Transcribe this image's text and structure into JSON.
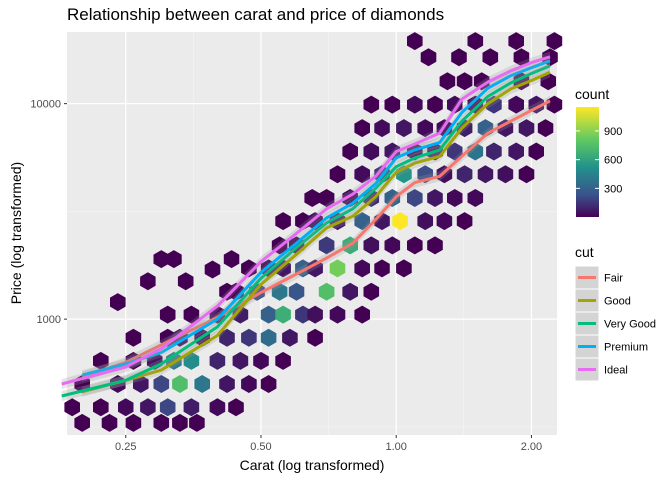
{
  "chart_data": {
    "type": "hexbin-scatter-with-smooth-lines",
    "title": "Relationship between carat and price of diamonds",
    "xlabel": "Carat (log transformed)",
    "ylabel": "Price (log transformed)",
    "x_scale": "log10",
    "y_scale": "log10",
    "xlim": [
      0.185,
      2.28
    ],
    "ylim": [
      290,
      21500
    ],
    "x_ticks": [
      {
        "value": 0.25,
        "label": "0.25"
      },
      {
        "value": 0.5,
        "label": "0.50"
      },
      {
        "value": 1.0,
        "label": "1.00"
      },
      {
        "value": 2.0,
        "label": "2.00"
      }
    ],
    "y_ticks": [
      {
        "value": 1000,
        "label": "1000"
      },
      {
        "value": 10000,
        "label": "10000"
      }
    ],
    "grid": true,
    "background": "#ebebeb",
    "colorbar": {
      "title": "count",
      "ticks": [
        {
          "value": 300,
          "label": "300"
        },
        {
          "value": 600,
          "label": "600"
        },
        {
          "value": 900,
          "label": "900"
        }
      ],
      "range": [
        1,
        1150
      ],
      "colormap": "viridis"
    },
    "series": [
      {
        "name": "Fair",
        "color": "#f8766d",
        "x": [
          0.2,
          0.25,
          0.3,
          0.4,
          0.5,
          0.6,
          0.7,
          0.8,
          0.9,
          1.0,
          1.1,
          1.25,
          1.4,
          1.6,
          1.8,
          2.0,
          2.2
        ],
        "y": [
          540,
          630,
          760,
          1020,
          1330,
          1620,
          1920,
          2250,
          2900,
          3700,
          4300,
          4600,
          5700,
          7300,
          8300,
          9300,
          10300
        ]
      },
      {
        "name": "Good",
        "color": "#a3a500",
        "x": [
          0.2,
          0.25,
          0.3,
          0.4,
          0.5,
          0.6,
          0.7,
          0.8,
          0.9,
          1.0,
          1.1,
          1.25,
          1.4,
          1.6,
          1.8,
          2.0,
          2.2
        ],
        "y": [
          460,
          520,
          580,
          840,
          1450,
          2000,
          2650,
          3000,
          3700,
          4800,
          5300,
          5700,
          7700,
          10000,
          11700,
          12800,
          14000
        ]
      },
      {
        "name": "Very Good",
        "color": "#00bf7d",
        "x": [
          0.18,
          0.25,
          0.3,
          0.4,
          0.5,
          0.6,
          0.7,
          0.8,
          0.9,
          1.0,
          1.1,
          1.25,
          1.4,
          1.6,
          1.8,
          2.0,
          2.2
        ],
        "y": [
          440,
          520,
          620,
          920,
          1550,
          2150,
          2800,
          3250,
          4050,
          5100,
          5600,
          6100,
          8300,
          10800,
          12500,
          13800,
          15000
        ]
      },
      {
        "name": "Premium",
        "color": "#00b0f6",
        "x": [
          0.2,
          0.25,
          0.3,
          0.4,
          0.5,
          0.6,
          0.7,
          0.8,
          0.9,
          1.0,
          1.1,
          1.25,
          1.4,
          1.6,
          1.8,
          2.0,
          2.2
        ],
        "y": [
          550,
          620,
          700,
          1000,
          1650,
          2250,
          2950,
          3450,
          4250,
          5600,
          6100,
          6600,
          9100,
          11800,
          13500,
          14700,
          15800
        ]
      },
      {
        "name": "Ideal",
        "color": "#e76bf3",
        "x": [
          0.18,
          0.25,
          0.3,
          0.4,
          0.5,
          0.6,
          0.7,
          0.8,
          0.9,
          1.0,
          1.1,
          1.25,
          1.4,
          1.6,
          1.8,
          2.0,
          2.2
        ],
        "y": [
          500,
          600,
          730,
          1150,
          1850,
          2500,
          3250,
          3800,
          4600,
          6000,
          6500,
          7300,
          10500,
          12600,
          14200,
          15500,
          16500
        ]
      }
    ],
    "hexbins": [
      [
        1.3,
        12700,
        1
      ],
      [
        1.42,
        12700,
        1
      ],
      [
        1.55,
        12700,
        1
      ],
      [
        1.9,
        12700,
        1
      ],
      [
        2.18,
        12700,
        1
      ],
      [
        1.18,
        16400,
        1
      ],
      [
        1.38,
        16400,
        1
      ],
      [
        1.62,
        16400,
        1
      ],
      [
        1.9,
        16400,
        1
      ],
      [
        2.2,
        16400,
        1
      ],
      [
        1.1,
        19500,
        1
      ],
      [
        1.5,
        19500,
        1
      ],
      [
        1.85,
        19500,
        1
      ],
      [
        2.25,
        19500,
        1
      ],
      [
        0.88,
        9900,
        1
      ],
      [
        0.98,
        9900,
        1
      ],
      [
        1.1,
        9900,
        20
      ],
      [
        1.22,
        9900,
        1
      ],
      [
        1.35,
        9900,
        30
      ],
      [
        1.5,
        9900,
        1
      ],
      [
        1.65,
        9900,
        150
      ],
      [
        1.85,
        9900,
        20
      ],
      [
        2.05,
        9900,
        60
      ],
      [
        2.25,
        9900,
        1
      ],
      [
        0.84,
        7700,
        1
      ],
      [
        0.93,
        7700,
        30
      ],
      [
        1.04,
        7700,
        60
      ],
      [
        1.16,
        7700,
        20
      ],
      [
        1.28,
        7700,
        20
      ],
      [
        1.42,
        7700,
        80
      ],
      [
        1.58,
        7700,
        300
      ],
      [
        1.75,
        7700,
        60
      ],
      [
        1.95,
        7700,
        60
      ],
      [
        2.15,
        7700,
        1
      ],
      [
        0.79,
        6000,
        1
      ],
      [
        0.88,
        6000,
        30
      ],
      [
        0.98,
        6000,
        60
      ],
      [
        1.1,
        6000,
        40
      ],
      [
        1.22,
        6000,
        60
      ],
      [
        1.35,
        6000,
        150
      ],
      [
        1.5,
        6000,
        380
      ],
      [
        1.65,
        6000,
        100
      ],
      [
        1.85,
        6000,
        60
      ],
      [
        2.05,
        6000,
        1
      ],
      [
        0.74,
        4700,
        1
      ],
      [
        0.84,
        4700,
        30
      ],
      [
        0.93,
        4700,
        120
      ],
      [
        1.04,
        4700,
        540
      ],
      [
        1.16,
        4700,
        220
      ],
      [
        1.28,
        4700,
        40
      ],
      [
        1.42,
        4700,
        100
      ],
      [
        1.58,
        4700,
        60
      ],
      [
        1.75,
        4700,
        40
      ],
      [
        1.95,
        4700,
        1
      ],
      [
        0.65,
        3650,
        1
      ],
      [
        0.7,
        3650,
        1
      ],
      [
        0.79,
        3650,
        20
      ],
      [
        0.88,
        3650,
        120
      ],
      [
        0.98,
        3650,
        300
      ],
      [
        1.1,
        3650,
        200
      ],
      [
        1.22,
        3650,
        60
      ],
      [
        1.35,
        3650,
        20
      ],
      [
        1.5,
        3650,
        20
      ],
      [
        0.56,
        2850,
        1
      ],
      [
        0.62,
        2850,
        1
      ],
      [
        0.66,
        2850,
        20
      ],
      [
        0.74,
        2850,
        60
      ],
      [
        0.84,
        2850,
        300
      ],
      [
        0.93,
        2850,
        60
      ],
      [
        1.02,
        2850,
        1150
      ],
      [
        1.16,
        2850,
        40
      ],
      [
        1.28,
        2850,
        20
      ],
      [
        1.42,
        2850,
        1
      ],
      [
        0.55,
        2200,
        1
      ],
      [
        0.6,
        2200,
        20
      ],
      [
        0.7,
        2200,
        160
      ],
      [
        0.79,
        2200,
        650
      ],
      [
        0.88,
        2200,
        40
      ],
      [
        0.98,
        2200,
        20
      ],
      [
        1.1,
        2200,
        1
      ],
      [
        1.22,
        2200,
        1
      ],
      [
        0.47,
        1720,
        1
      ],
      [
        0.52,
        1720,
        20
      ],
      [
        0.56,
        1720,
        60
      ],
      [
        0.62,
        1720,
        300
      ],
      [
        0.66,
        1720,
        60
      ],
      [
        0.74,
        1720,
        850
      ],
      [
        0.84,
        1720,
        20
      ],
      [
        0.93,
        1720,
        1
      ],
      [
        1.04,
        1720,
        1
      ],
      [
        0.42,
        1340,
        1
      ],
      [
        0.44,
        1340,
        1
      ],
      [
        0.49,
        1340,
        200
      ],
      [
        0.55,
        1340,
        400
      ],
      [
        0.6,
        1340,
        250
      ],
      [
        0.7,
        1340,
        750
      ],
      [
        0.79,
        1340,
        60
      ],
      [
        0.88,
        1340,
        1
      ],
      [
        0.31,
        1050,
        1
      ],
      [
        0.35,
        1050,
        1
      ],
      [
        0.4,
        1050,
        20
      ],
      [
        0.45,
        1050,
        80
      ],
      [
        0.52,
        1050,
        300
      ],
      [
        0.56,
        1050,
        660
      ],
      [
        0.62,
        1050,
        150
      ],
      [
        0.66,
        1050,
        40
      ],
      [
        0.74,
        1050,
        20
      ],
      [
        0.84,
        1050,
        1
      ],
      [
        0.26,
        820,
        1
      ],
      [
        0.31,
        820,
        1
      ],
      [
        0.33,
        820,
        60
      ],
      [
        0.37,
        820,
        40
      ],
      [
        0.42,
        820,
        100
      ],
      [
        0.47,
        820,
        150
      ],
      [
        0.52,
        820,
        350
      ],
      [
        0.58,
        820,
        60
      ],
      [
        0.66,
        820,
        1
      ],
      [
        0.22,
        640,
        1
      ],
      [
        0.26,
        640,
        20
      ],
      [
        0.29,
        640,
        60
      ],
      [
        0.32,
        640,
        400
      ],
      [
        0.35,
        640,
        500
      ],
      [
        0.4,
        640,
        100
      ],
      [
        0.45,
        640,
        60
      ],
      [
        0.5,
        640,
        20
      ],
      [
        0.56,
        640,
        1
      ],
      [
        0.2,
        500,
        1
      ],
      [
        0.24,
        500,
        20
      ],
      [
        0.27,
        500,
        60
      ],
      [
        0.3,
        500,
        200
      ],
      [
        0.33,
        500,
        750
      ],
      [
        0.37,
        500,
        400
      ],
      [
        0.42,
        500,
        60
      ],
      [
        0.47,
        500,
        20
      ],
      [
        0.52,
        500,
        1
      ],
      [
        0.19,
        390,
        1
      ],
      [
        0.22,
        390,
        1
      ],
      [
        0.25,
        390,
        20
      ],
      [
        0.28,
        390,
        60
      ],
      [
        0.31,
        390,
        200
      ],
      [
        0.35,
        390,
        80
      ],
      [
        0.4,
        390,
        20
      ],
      [
        0.44,
        390,
        1
      ],
      [
        0.2,
        330,
        1
      ],
      [
        0.23,
        330,
        1
      ],
      [
        0.26,
        330,
        1
      ],
      [
        0.3,
        330,
        1
      ],
      [
        0.33,
        330,
        1
      ],
      [
        0.36,
        330,
        1
      ],
      [
        0.3,
        1900,
        1
      ],
      [
        0.32,
        1900,
        1
      ],
      [
        0.28,
        1500,
        1
      ],
      [
        0.24,
        1200,
        1
      ],
      [
        0.34,
        1500,
        1
      ],
      [
        0.39,
        1700,
        1
      ],
      [
        0.43,
        1900,
        1
      ]
    ],
    "legend": {
      "title": "cut",
      "items": [
        "Fair",
        "Good",
        "Very Good",
        "Premium",
        "Ideal"
      ],
      "placement": "right"
    }
  }
}
